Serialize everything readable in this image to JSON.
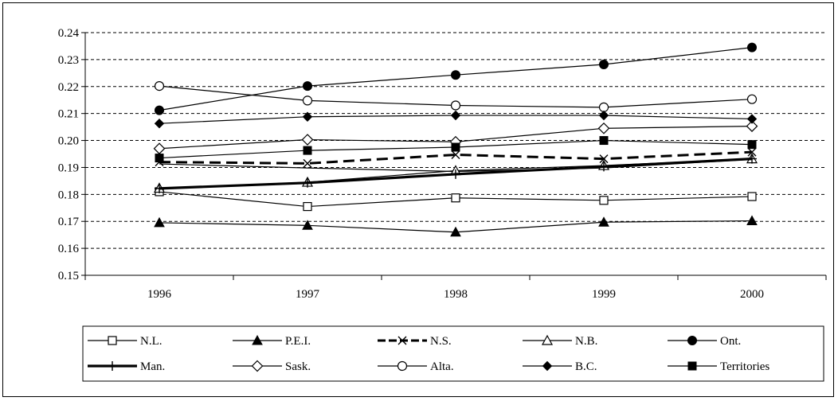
{
  "chart_data": {
    "type": "line",
    "title": "",
    "xlabel": "",
    "ylabel": "",
    "x": [
      "1996",
      "1997",
      "1998",
      "1999",
      "2000"
    ],
    "ylim": [
      0.15,
      0.24
    ],
    "yticks": [
      "0.15",
      "0.16",
      "0.17",
      "0.18",
      "0.19",
      "0.20",
      "0.21",
      "0.22",
      "0.23",
      "0.24"
    ],
    "grid": "horizontal-dashed",
    "legend_position": "bottom",
    "series": [
      {
        "name": "N.L.",
        "marker": "open-square",
        "line": "thin",
        "values": [
          0.181,
          0.1755,
          0.1787,
          0.1778,
          0.1792
        ]
      },
      {
        "name": "P.E.I.",
        "marker": "filled-triangle",
        "line": "thin",
        "values": [
          0.1695,
          0.1685,
          0.166,
          0.1697,
          0.1702
        ]
      },
      {
        "name": "N.S.",
        "marker": "x",
        "line": "thick-dashed",
        "values": [
          0.192,
          0.1915,
          0.1947,
          0.1932,
          0.1957
        ]
      },
      {
        "name": "N.B.",
        "marker": "open-triangle",
        "line": "thin",
        "values": [
          0.1823,
          0.1845,
          0.1888,
          0.1907,
          0.1932
        ]
      },
      {
        "name": "Ont.",
        "marker": "filled-circle",
        "line": "thin",
        "values": [
          0.2112,
          0.2202,
          0.2243,
          0.2282,
          0.2345
        ]
      },
      {
        "name": "Man.",
        "marker": "plus",
        "line": "thick",
        "values": [
          0.1822,
          0.1843,
          0.1875,
          0.1903,
          0.1932
        ]
      },
      {
        "name": "Sask.",
        "marker": "open-diamond",
        "line": "thin",
        "values": [
          0.197,
          0.2003,
          0.1995,
          0.2045,
          0.2053
        ]
      },
      {
        "name": "Alta.",
        "marker": "open-circle",
        "line": "thin",
        "values": [
          0.2202,
          0.2148,
          0.213,
          0.2123,
          0.2153
        ]
      },
      {
        "name": "B.C.",
        "marker": "filled-diamond",
        "line": "thin",
        "values": [
          0.2063,
          0.2088,
          0.2093,
          0.2093,
          0.208
        ]
      },
      {
        "name": "Territories",
        "marker": "filled-square",
        "line": "thin",
        "values": [
          0.1935,
          0.1963,
          0.1975,
          0.2,
          0.1985
        ]
      }
    ],
    "secondary_line": {
      "marker": "none",
      "line": "thin",
      "values": [
        0.1913,
        0.1898,
        0.1885,
        0.1898,
        0.193
      ]
    }
  }
}
